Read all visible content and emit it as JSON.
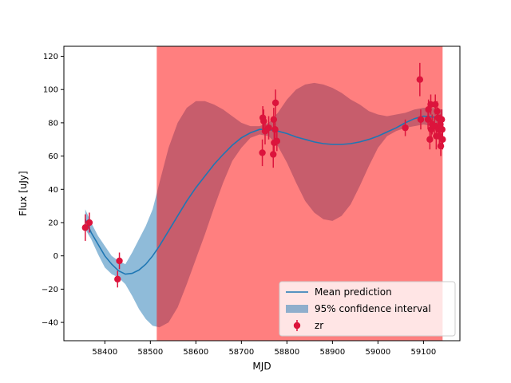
{
  "chart_data": {
    "type": "line",
    "title": "",
    "xlabel": "MJD",
    "ylabel": "Flux [uJy]",
    "xlim": [
      58310,
      59180
    ],
    "ylim": [
      -51,
      126
    ],
    "x_ticks": [
      58400,
      58500,
      58600,
      58700,
      58800,
      58900,
      59000,
      59100
    ],
    "y_ticks": [
      -40,
      -20,
      0,
      20,
      40,
      60,
      80,
      100,
      120
    ],
    "grid": false,
    "legend_position": "lower-right",
    "colors": {
      "mean": "#1f77b4",
      "band": "#1f77b4",
      "points": "#dc143c",
      "shade": "#ff0000"
    },
    "shaded_region": {
      "x_start": 58514,
      "x_end": 59142
    },
    "legend": [
      {
        "label": "Mean prediction",
        "kind": "line"
      },
      {
        "label": "95% confidence interval",
        "kind": "band"
      },
      {
        "label": "zr",
        "kind": "errorbar"
      }
    ],
    "mean_prediction": {
      "x": [
        58357,
        58370,
        58385,
        58400,
        58415,
        58430,
        58445,
        58460,
        58475,
        58490,
        58505,
        58520,
        58540,
        58560,
        58580,
        58600,
        58620,
        58640,
        58660,
        58680,
        58700,
        58720,
        58740,
        58760,
        58780,
        58800,
        58820,
        58840,
        58860,
        58880,
        58900,
        58920,
        58940,
        58960,
        58980,
        59000,
        59020,
        59040,
        59060,
        59080,
        59100,
        59120,
        59142
      ],
      "y": [
        22,
        14,
        7,
        0,
        -5,
        -9,
        -11,
        -10.5,
        -8.5,
        -5,
        0,
        6,
        15,
        24,
        33,
        41,
        48,
        55,
        61,
        66.5,
        71,
        74,
        76,
        76,
        75,
        73.5,
        71.5,
        70,
        68.5,
        67.5,
        67,
        67,
        67.5,
        68.5,
        70,
        72,
        74.5,
        77,
        80,
        82.5,
        84,
        83.5,
        82.5
      ]
    },
    "confidence_interval": {
      "x": [
        58357,
        58370,
        58385,
        58400,
        58415,
        58430,
        58445,
        58460,
        58475,
        58490,
        58505,
        58520,
        58540,
        58560,
        58580,
        58600,
        58620,
        58640,
        58660,
        58680,
        58700,
        58720,
        58740,
        58760,
        58780,
        58800,
        58820,
        58840,
        58860,
        58880,
        58900,
        58920,
        58940,
        58960,
        58980,
        59000,
        59020,
        59040,
        59060,
        59080,
        59100,
        59120,
        59142
      ],
      "lower": [
        16,
        10,
        1,
        -7,
        -11,
        -13,
        -17,
        -24,
        -32,
        -38,
        -42,
        -43,
        -40,
        -31,
        -17,
        -2,
        13,
        29,
        44,
        57,
        65,
        71,
        73,
        72,
        66,
        56,
        44,
        33,
        26,
        22,
        21,
        24,
        31,
        42,
        54,
        65,
        72,
        75,
        77,
        78,
        79,
        78,
        78
      ],
      "upper": [
        28,
        20,
        12,
        6,
        0,
        -3,
        -5,
        2,
        10,
        18,
        28,
        44,
        65,
        80,
        89,
        93,
        93,
        91,
        88,
        84,
        80,
        78,
        78,
        80,
        86,
        94,
        100,
        103,
        104,
        103,
        101,
        98,
        94,
        91,
        87,
        85,
        84,
        85,
        86,
        88,
        89,
        89,
        88
      ]
    },
    "series": [
      {
        "name": "zr",
        "points": [
          {
            "x": 58357,
            "y": 17,
            "err": 8
          },
          {
            "x": 58366,
            "y": 20,
            "err": 6
          },
          {
            "x": 58428,
            "y": -14,
            "err": 5
          },
          {
            "x": 58432,
            "y": -3,
            "err": 5
          },
          {
            "x": 58746,
            "y": 62,
            "err": 8
          },
          {
            "x": 58747,
            "y": 83,
            "err": 7
          },
          {
            "x": 58749,
            "y": 81,
            "err": 7
          },
          {
            "x": 58752,
            "y": 75,
            "err": 8
          },
          {
            "x": 58760,
            "y": 77,
            "err": 7
          },
          {
            "x": 58770,
            "y": 61,
            "err": 8
          },
          {
            "x": 58771,
            "y": 82,
            "err": 7
          },
          {
            "x": 58772,
            "y": 68,
            "err": 7
          },
          {
            "x": 58774,
            "y": 76,
            "err": 6
          },
          {
            "x": 58775,
            "y": 92,
            "err": 8
          },
          {
            "x": 58778,
            "y": 69,
            "err": 6
          },
          {
            "x": 59060,
            "y": 77,
            "err": 5
          },
          {
            "x": 59092,
            "y": 106,
            "err": 10
          },
          {
            "x": 59094,
            "y": 82,
            "err": 6
          },
          {
            "x": 59110,
            "y": 82,
            "err": 6
          },
          {
            "x": 59111,
            "y": 88,
            "err": 6
          },
          {
            "x": 59114,
            "y": 70,
            "err": 6
          },
          {
            "x": 59116,
            "y": 91,
            "err": 6
          },
          {
            "x": 59117,
            "y": 76,
            "err": 6
          },
          {
            "x": 59119,
            "y": 79,
            "err": 6
          },
          {
            "x": 59124,
            "y": 78,
            "err": 6
          },
          {
            "x": 59126,
            "y": 91,
            "err": 6
          },
          {
            "x": 59128,
            "y": 72,
            "err": 8
          },
          {
            "x": 59130,
            "y": 87,
            "err": 6
          },
          {
            "x": 59132,
            "y": 83,
            "err": 6
          },
          {
            "x": 59133,
            "y": 76,
            "err": 6
          },
          {
            "x": 59135,
            "y": 72,
            "err": 6
          },
          {
            "x": 59137,
            "y": 79,
            "err": 6
          },
          {
            "x": 59138,
            "y": 66,
            "err": 6
          },
          {
            "x": 59140,
            "y": 82,
            "err": 6
          },
          {
            "x": 59141,
            "y": 76,
            "err": 6
          },
          {
            "x": 59142,
            "y": 70,
            "err": 6
          }
        ]
      }
    ]
  }
}
